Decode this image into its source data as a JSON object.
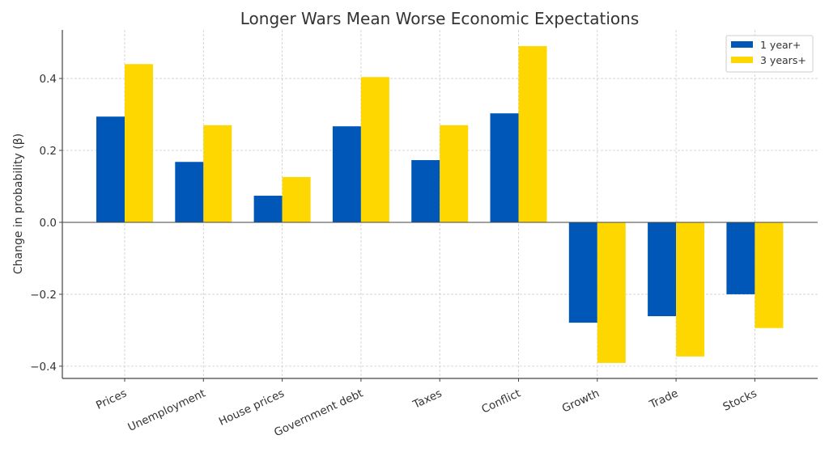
{
  "chart_data": {
    "type": "bar",
    "title": "Longer Wars Mean Worse Economic Expectations",
    "xlabel": "",
    "ylabel": "Change in probability (β)",
    "categories": [
      "Prices",
      "Unemployment",
      "House prices",
      "Government debt",
      "Taxes",
      "Conflict",
      "Growth",
      "Trade",
      "Stocks"
    ],
    "series": [
      {
        "name": "1 year+",
        "color": "#0057b7",
        "values": [
          0.294,
          0.168,
          0.074,
          0.267,
          0.173,
          0.303,
          -0.279,
          -0.261,
          -0.2
        ]
      },
      {
        "name": "3 years+",
        "color": "#ffd700",
        "values": [
          0.44,
          0.27,
          0.126,
          0.404,
          0.27,
          0.49,
          -0.391,
          -0.373,
          -0.294
        ]
      }
    ],
    "ylim": [
      -0.434,
      0.535
    ],
    "yticks": [
      -0.4,
      -0.2,
      0.0,
      0.2,
      0.4
    ],
    "ytick_labels": [
      "−0.4",
      "−0.2",
      "0.0",
      "0.2",
      "0.4"
    ],
    "grid": true,
    "legend_position": "top-right"
  }
}
